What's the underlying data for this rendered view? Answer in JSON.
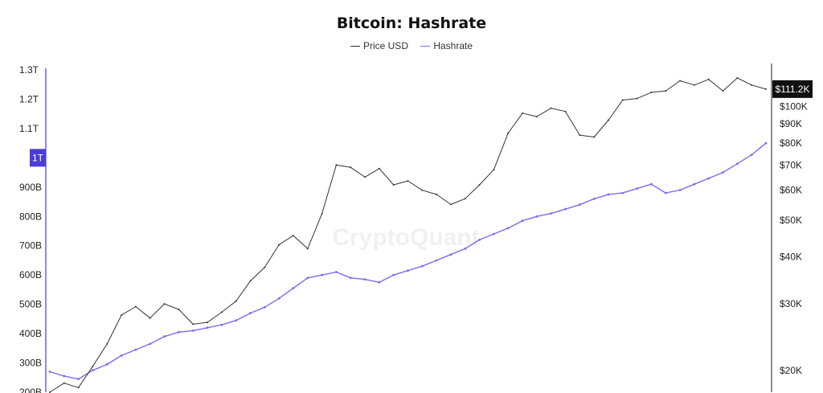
{
  "chart_data": {
    "type": "line",
    "title": "Bitcoin: Hashrate",
    "watermark": "CryptoQuant",
    "legend_placement": "top-center",
    "grid": false,
    "series": [
      {
        "name": "Price USD",
        "color": "#333333",
        "axis": "right",
        "x": [
          0,
          2,
          4,
          6,
          8,
          10,
          12,
          14,
          16,
          18,
          20,
          22,
          24,
          26,
          28,
          30,
          32,
          34,
          36,
          38,
          40,
          42,
          44,
          46,
          48,
          50,
          52,
          54,
          56,
          58,
          60,
          62,
          64,
          66,
          68,
          70,
          72,
          74,
          76,
          78,
          80,
          82,
          84,
          86,
          88,
          90,
          92,
          94,
          96,
          98,
          100
        ],
        "values": [
          17500,
          18500,
          18000,
          20500,
          23500,
          28000,
          29500,
          27500,
          30000,
          29000,
          26500,
          26800,
          28500,
          30500,
          34500,
          37500,
          43000,
          45500,
          42000,
          52000,
          70000,
          69000,
          65000,
          68500,
          62000,
          63500,
          60000,
          58500,
          55000,
          57000,
          62000,
          68000,
          85000,
          96000,
          94000,
          99000,
          97000,
          84000,
          83000,
          92000,
          104000,
          105000,
          109000,
          110000,
          117000,
          114000,
          118000,
          110000,
          119000,
          114000,
          111200
        ]
      },
      {
        "name": "Hashrate",
        "color": "#7b6cf0",
        "axis": "left",
        "x": [
          0,
          2,
          4,
          6,
          8,
          10,
          12,
          14,
          16,
          18,
          20,
          22,
          24,
          26,
          28,
          30,
          32,
          34,
          36,
          38,
          40,
          42,
          44,
          46,
          48,
          50,
          52,
          54,
          56,
          58,
          60,
          62,
          64,
          66,
          68,
          70,
          72,
          74,
          76,
          78,
          80,
          82,
          84,
          86,
          88,
          90,
          92,
          94,
          96,
          98,
          100
        ],
        "values": [
          270,
          255,
          245,
          275,
          295,
          325,
          345,
          365,
          390,
          405,
          410,
          420,
          430,
          445,
          470,
          490,
          520,
          555,
          590,
          600,
          610,
          590,
          585,
          575,
          600,
          615,
          630,
          650,
          670,
          690,
          720,
          740,
          760,
          785,
          800,
          810,
          825,
          840,
          860,
          875,
          880,
          895,
          910,
          880,
          890,
          910,
          930,
          950,
          980,
          1010,
          1050
        ]
      }
    ],
    "left_axis": {
      "ticks": [
        {
          "value": 200,
          "label": "200B"
        },
        {
          "value": 300,
          "label": "300B"
        },
        {
          "value": 400,
          "label": "400B"
        },
        {
          "value": 500,
          "label": "500B"
        },
        {
          "value": 600,
          "label": "600B"
        },
        {
          "value": 700,
          "label": "700B"
        },
        {
          "value": 800,
          "label": "800B"
        },
        {
          "value": 900,
          "label": "900B"
        },
        {
          "value": 1100,
          "label": "1.1T"
        },
        {
          "value": 1200,
          "label": "1.2T"
        },
        {
          "value": 1300,
          "label": "1.3T"
        }
      ],
      "highlight": {
        "value": 1000,
        "label": "1T"
      },
      "range": [
        200,
        1300
      ]
    },
    "right_axis": {
      "scale": "log",
      "ticks": [
        {
          "value": 20000,
          "label": "$20K"
        },
        {
          "value": 30000,
          "label": "$30K"
        },
        {
          "value": 40000,
          "label": "$40K"
        },
        {
          "value": 50000,
          "label": "$50K"
        },
        {
          "value": 60000,
          "label": "$60K"
        },
        {
          "value": 70000,
          "label": "$70K"
        },
        {
          "value": 80000,
          "label": "$80K"
        },
        {
          "value": 90000,
          "label": "$90K"
        },
        {
          "value": 100000,
          "label": "$100K"
        }
      ],
      "current": {
        "value": 111200,
        "label": "$111.2K"
      },
      "range": [
        17500,
        125000
      ]
    },
    "colors": {
      "price": "#333333",
      "hashrate": "#7b6cf0",
      "axis_accent": "#4b3bd8"
    }
  }
}
